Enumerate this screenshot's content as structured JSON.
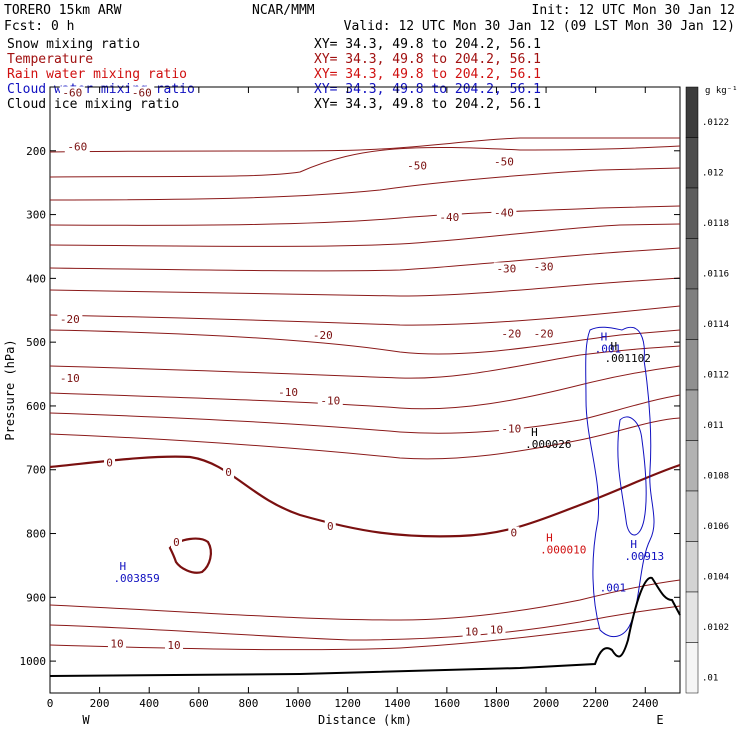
{
  "header": {
    "model": "TORERO  15km ARW",
    "center": "NCAR/MMM",
    "init": "Init: 12 UTC Mon 30 Jan 12",
    "fcst": "Fcst:    0 h",
    "valid": "Valid: 12 UTC Mon 30 Jan 12 (09 LST Mon 30 Jan 12)"
  },
  "fields": [
    {
      "name": "Snow mixing ratio",
      "xy": "XY=  34.3, 49.8 to 204.2, 56.1",
      "color": "#000000"
    },
    {
      "name": "Temperature",
      "xy": "XY=  34.3, 49.8 to 204.2, 56.1",
      "color": "#a01010"
    },
    {
      "name": "Rain water mixing ratio",
      "xy": "XY=  34.3, 49.8 to 204.2, 56.1",
      "color": "#d01010"
    },
    {
      "name": "Cloud water mixing ratio",
      "xy": "XY=  34.3, 49.8 to 204.2, 56.1",
      "color": "#1010c0"
    },
    {
      "name": "Cloud ice mixing ratio",
      "xy": "XY=  34.3, 49.8 to 204.2, 56.1",
      "color": "#000000"
    }
  ],
  "chart_data": {
    "type": "cross-section-contour",
    "xlabel": "Distance (km)",
    "ylabel": "Pressure (hPa)",
    "xlim": [
      0,
      2540
    ],
    "ylim": [
      1050,
      100
    ],
    "x_ticks": [
      "0",
      "200",
      "400",
      "600",
      "800",
      "1000",
      "1200",
      "1400",
      "1600",
      "1800",
      "2000",
      "2200",
      "2400"
    ],
    "x_tick_values": [
      0,
      200,
      400,
      600,
      800,
      1000,
      1200,
      1400,
      1600,
      1800,
      2000,
      2200,
      2400
    ],
    "y_ticks": [
      "200",
      "300",
      "400",
      "500",
      "600",
      "700",
      "800",
      "900",
      "1000"
    ],
    "y_tick_values": [
      200,
      300,
      400,
      500,
      600,
      700,
      800,
      900,
      1000
    ],
    "left_endpoint": "W",
    "right_endpoint": "E",
    "colorbar": {
      "unit": "g kg⁻¹",
      "labels": [
        ".0122",
        ".012",
        ".0118",
        ".0116",
        ".0114",
        ".0112",
        ".011",
        ".0108",
        ".0106",
        ".0104",
        ".0102",
        ".01"
      ],
      "values": [
        0.0122,
        0.012,
        0.0118,
        0.0116,
        0.0114,
        0.0112,
        0.011,
        0.0108,
        0.0106,
        0.0104,
        0.0102,
        0.01
      ]
    },
    "temperature_labels": [
      {
        "text": "-60",
        "x": 90,
        "p": 110
      },
      {
        "text": "-60",
        "x": 370,
        "p": 110
      },
      {
        "text": "-60",
        "x": 110,
        "p": 195
      },
      {
        "text": "-50",
        "x": 1480,
        "p": 225
      },
      {
        "text": "-50",
        "x": 1830,
        "p": 218
      },
      {
        "text": "-40",
        "x": 1610,
        "p": 305
      },
      {
        "text": "-40",
        "x": 1830,
        "p": 298
      },
      {
        "text": "-30",
        "x": 1840,
        "p": 386
      },
      {
        "text": "-30",
        "x": 1990,
        "p": 383
      },
      {
        "text": "-20",
        "x": 80,
        "p": 465
      },
      {
        "text": "-20",
        "x": 1100,
        "p": 490
      },
      {
        "text": "-20",
        "x": 1860,
        "p": 488
      },
      {
        "text": "-20",
        "x": 1990,
        "p": 488
      },
      {
        "text": "-10",
        "x": 80,
        "p": 558
      },
      {
        "text": "-10",
        "x": 960,
        "p": 580
      },
      {
        "text": "-10",
        "x": 1130,
        "p": 593
      },
      {
        "text": "-10",
        "x": 1860,
        "p": 637
      },
      {
        "text": "0",
        "x": 240,
        "p": 690
      },
      {
        "text": "0",
        "x": 720,
        "p": 705
      },
      {
        "text": "0",
        "x": 1130,
        "p": 790
      },
      {
        "text": "0",
        "x": 1870,
        "p": 800
      },
      {
        "text": "0",
        "x": 510,
        "p": 815
      },
      {
        "text": "10",
        "x": 270,
        "p": 974
      },
      {
        "text": "10",
        "x": 500,
        "p": 976
      },
      {
        "text": "10",
        "x": 1700,
        "p": 955
      },
      {
        "text": "10",
        "x": 1800,
        "p": 952
      }
    ],
    "extrema": [
      {
        "mark": "H",
        "value": ".001",
        "x": 2220,
        "p": 510,
        "color": "#1010c0"
      },
      {
        "mark": "H",
        "value": ".001102",
        "x": 2260,
        "p": 525,
        "color": "#000000"
      },
      {
        "mark": "H",
        "value": ".000026",
        "x": 1940,
        "p": 660,
        "color": "#000000"
      },
      {
        "mark": "H",
        "value": ".000010",
        "x": 2000,
        "p": 825,
        "color": "#d01010"
      },
      {
        "mark": "H",
        "value": ".003859",
        "x": 280,
        "p": 870,
        "color": "#1010c0"
      },
      {
        "mark": "H",
        "value": ".00913",
        "x": 2340,
        "p": 835,
        "color": "#1010c0"
      },
      {
        "mark": "",
        "value": ".001",
        "x": 2240,
        "p": 885,
        "color": "#1010c0"
      }
    ]
  }
}
